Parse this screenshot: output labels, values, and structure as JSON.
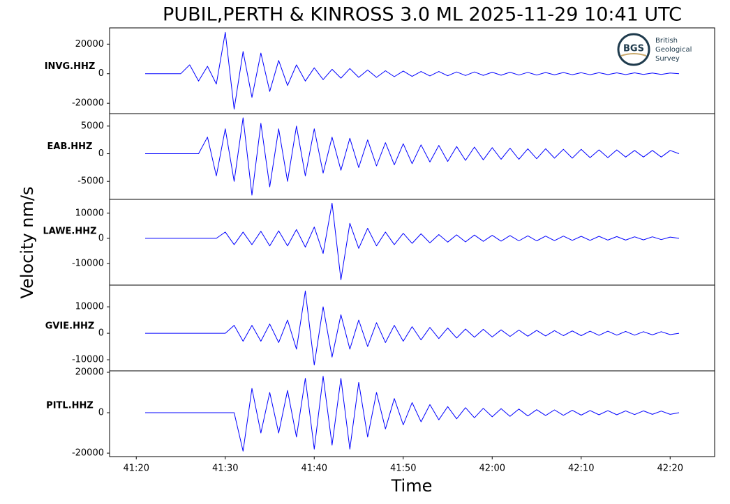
{
  "title": "PUBIL,PERTH & KINROSS 3.0 ML   2025-11-29 10:41 UTC",
  "ylabel": "Velocity nm/s",
  "xlabel": "Time",
  "logo": {
    "mark": "BGS",
    "lines": [
      "British",
      "Geological",
      "Survey"
    ]
  },
  "chart_data": [
    {
      "type": "line",
      "label": "INVG.HHZ",
      "color": "#0000ff",
      "xlim": [
        17,
        85
      ],
      "ylim": [
        -27000,
        31000
      ],
      "yticks": [
        -20000,
        0,
        20000
      ],
      "x": [
        21,
        22,
        23,
        24,
        25,
        26,
        27,
        28,
        29,
        30,
        31,
        32,
        33,
        34,
        35,
        36,
        37,
        38,
        39,
        40,
        41,
        42,
        43,
        44,
        45,
        46,
        47,
        48,
        49,
        50,
        51,
        52,
        53,
        54,
        55,
        56,
        57,
        58,
        59,
        60,
        61,
        62,
        63,
        64,
        65,
        66,
        67,
        68,
        69,
        70,
        71,
        72,
        73,
        74,
        75,
        76,
        77,
        78,
        79,
        80,
        81
      ],
      "values": [
        0,
        0,
        0,
        0,
        0,
        6000,
        -5000,
        5000,
        -7000,
        28000,
        -24000,
        15000,
        -16000,
        14000,
        -12000,
        9000,
        -8000,
        6000,
        -5000,
        4000,
        -4000,
        3000,
        -3000,
        3500,
        -2500,
        2500,
        -2500,
        2000,
        -2000,
        1800,
        -1800,
        1500,
        -1500,
        1500,
        -1400,
        1200,
        -1200,
        1200,
        -1100,
        1000,
        -1000,
        1000,
        -900,
        900,
        -900,
        800,
        -800,
        800,
        -700,
        700,
        -700,
        700,
        -600,
        600,
        -600,
        600,
        -500,
        500,
        -500,
        500,
        0
      ]
    },
    {
      "type": "line",
      "label": "EAB.HHZ",
      "color": "#0000ff",
      "xlim": [
        17,
        85
      ],
      "ylim": [
        -8250,
        7250
      ],
      "yticks": [
        -5000,
        0,
        5000
      ],
      "x": [
        21,
        22,
        23,
        24,
        25,
        26,
        27,
        28,
        29,
        30,
        31,
        32,
        33,
        34,
        35,
        36,
        37,
        38,
        39,
        40,
        41,
        42,
        43,
        44,
        45,
        46,
        47,
        48,
        49,
        50,
        51,
        52,
        53,
        54,
        55,
        56,
        57,
        58,
        59,
        60,
        61,
        62,
        63,
        64,
        65,
        66,
        67,
        68,
        69,
        70,
        71,
        72,
        73,
        74,
        75,
        76,
        77,
        78,
        79,
        80,
        81
      ],
      "values": [
        0,
        0,
        0,
        0,
        0,
        0,
        0,
        3000,
        -4000,
        4500,
        -5000,
        6500,
        -7500,
        5500,
        -6000,
        4500,
        -5000,
        5000,
        -4000,
        4500,
        -3500,
        3000,
        -3000,
        2800,
        -2500,
        2500,
        -2200,
        2000,
        -2000,
        1800,
        -1800,
        1600,
        -1500,
        1500,
        -1400,
        1300,
        -1200,
        1200,
        -1100,
        1100,
        -1000,
        1000,
        -1000,
        900,
        -900,
        900,
        -800,
        800,
        -800,
        800,
        -700,
        700,
        -700,
        700,
        -600,
        600,
        -600,
        600,
        -600,
        600,
        0
      ]
    },
    {
      "type": "line",
      "label": "LAWE.HHZ",
      "color": "#0000ff",
      "xlim": [
        17,
        85
      ],
      "ylim": [
        -18600,
        15500
      ],
      "yticks": [
        -10000,
        0,
        10000
      ],
      "x": [
        21,
        22,
        23,
        24,
        25,
        26,
        27,
        28,
        29,
        30,
        31,
        32,
        33,
        34,
        35,
        36,
        37,
        38,
        39,
        40,
        41,
        42,
        43,
        44,
        45,
        46,
        47,
        48,
        49,
        50,
        51,
        52,
        53,
        54,
        55,
        56,
        57,
        58,
        59,
        60,
        61,
        62,
        63,
        64,
        65,
        66,
        67,
        68,
        69,
        70,
        71,
        72,
        73,
        74,
        75,
        76,
        77,
        78,
        79,
        80,
        81
      ],
      "values": [
        0,
        0,
        0,
        0,
        0,
        0,
        0,
        0,
        0,
        2500,
        -2500,
        2500,
        -2500,
        2800,
        -3000,
        3000,
        -3000,
        3500,
        -3500,
        4500,
        -6000,
        14000,
        -16500,
        6000,
        -4000,
        4000,
        -3000,
        2500,
        -2500,
        2000,
        -2000,
        1800,
        -1800,
        1500,
        -1500,
        1400,
        -1400,
        1300,
        -1200,
        1200,
        -1100,
        1100,
        -1000,
        1000,
        -1000,
        900,
        -900,
        900,
        -800,
        800,
        -800,
        800,
        -700,
        700,
        -700,
        600,
        -600,
        600,
        -500,
        500,
        0
      ]
    },
    {
      "type": "line",
      "label": "GVIE.HHZ",
      "color": "#0000ff",
      "xlim": [
        17,
        85
      ],
      "ylim": [
        -14200,
        18200
      ],
      "yticks": [
        -10000,
        0,
        10000
      ],
      "x": [
        21,
        22,
        23,
        24,
        25,
        26,
        27,
        28,
        29,
        30,
        31,
        32,
        33,
        34,
        35,
        36,
        37,
        38,
        39,
        40,
        41,
        42,
        43,
        44,
        45,
        46,
        47,
        48,
        49,
        50,
        51,
        52,
        53,
        54,
        55,
        56,
        57,
        58,
        59,
        60,
        61,
        62,
        63,
        64,
        65,
        66,
        67,
        68,
        69,
        70,
        71,
        72,
        73,
        74,
        75,
        76,
        77,
        78,
        79,
        80,
        81
      ],
      "values": [
        0,
        0,
        0,
        0,
        0,
        0,
        0,
        0,
        0,
        0,
        3000,
        -3000,
        3000,
        -3000,
        3500,
        -3500,
        5000,
        -6000,
        16000,
        -12000,
        10000,
        -9000,
        7000,
        -6000,
        5000,
        -5000,
        4000,
        -3500,
        3000,
        -3000,
        2500,
        -2500,
        2200,
        -2000,
        2000,
        -1800,
        1600,
        -1500,
        1500,
        -1400,
        1300,
        -1200,
        1200,
        -1100,
        1100,
        -1000,
        1000,
        -900,
        900,
        -900,
        800,
        -800,
        800,
        -700,
        700,
        -700,
        600,
        -600,
        600,
        -500,
        0
      ]
    },
    {
      "type": "line",
      "label": "PITL.HHZ",
      "color": "#0000ff",
      "xlim": [
        17,
        85
      ],
      "ylim": [
        -21700,
        20700
      ],
      "yticks": [
        -20000,
        0,
        20000
      ],
      "xticks": [
        {
          "value": 20,
          "label": "41:20"
        },
        {
          "value": 30,
          "label": "41:30"
        },
        {
          "value": 40,
          "label": "41:40"
        },
        {
          "value": 50,
          "label": "41:50"
        },
        {
          "value": 60,
          "label": "42:00"
        },
        {
          "value": 70,
          "label": "42:10"
        },
        {
          "value": 80,
          "label": "42:20"
        }
      ],
      "x": [
        21,
        22,
        23,
        24,
        25,
        26,
        27,
        28,
        29,
        30,
        31,
        32,
        33,
        34,
        35,
        36,
        37,
        38,
        39,
        40,
        41,
        42,
        43,
        44,
        45,
        46,
        47,
        48,
        49,
        50,
        51,
        52,
        53,
        54,
        55,
        56,
        57,
        58,
        59,
        60,
        61,
        62,
        63,
        64,
        65,
        66,
        67,
        68,
        69,
        70,
        71,
        72,
        73,
        74,
        75,
        76,
        77,
        78,
        79,
        80,
        81
      ],
      "values": [
        0,
        0,
        0,
        0,
        0,
        0,
        0,
        0,
        0,
        0,
        0,
        -19000,
        12000,
        -10000,
        10000,
        -10000,
        11000,
        -12000,
        17000,
        -18000,
        18000,
        -16000,
        17000,
        -18000,
        15000,
        -12000,
        10000,
        -8000,
        7000,
        -6000,
        5000,
        -4500,
        4000,
        -3500,
        3000,
        -3000,
        2500,
        -2500,
        2200,
        -2000,
        2000,
        -1800,
        1800,
        -1600,
        1500,
        -1400,
        1400,
        -1300,
        1200,
        -1200,
        1100,
        -1000,
        1000,
        -1000,
        900,
        -900,
        900,
        -800,
        800,
        -800,
        0
      ]
    }
  ]
}
